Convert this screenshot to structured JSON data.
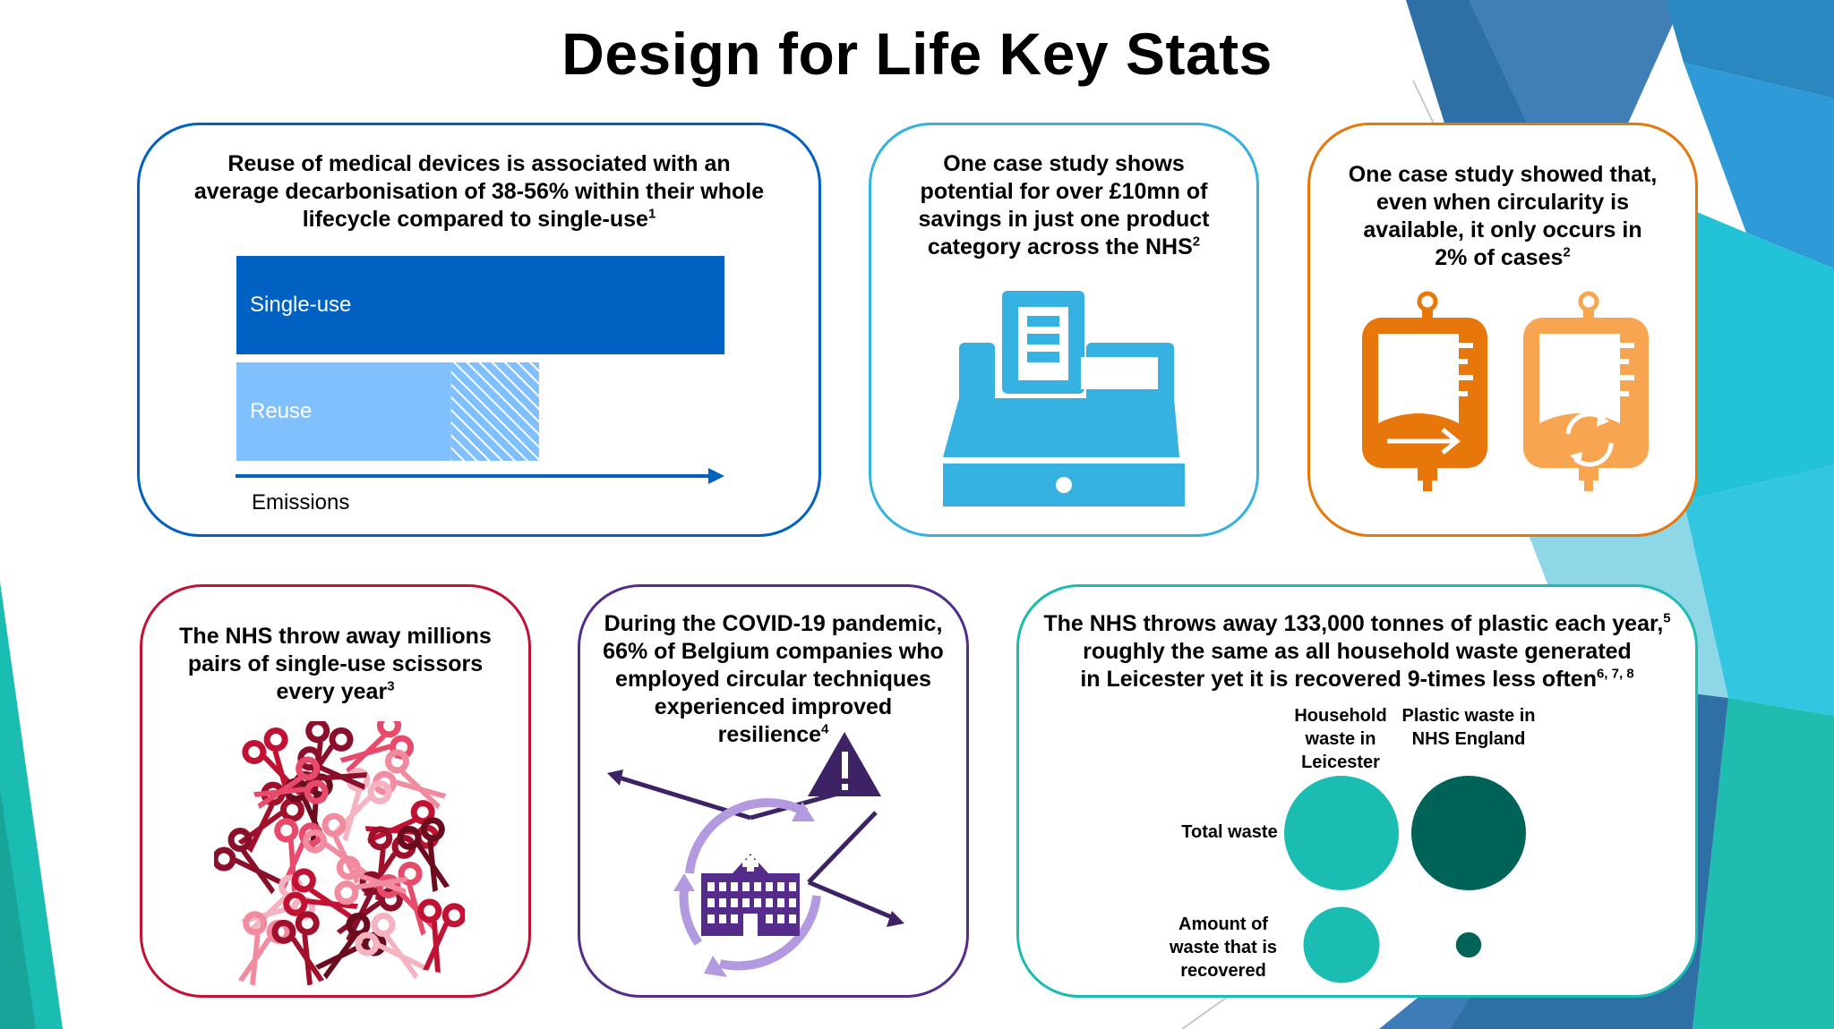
{
  "title": "Design for Life Key Stats",
  "colors": {
    "blue_dark": "#0061c2",
    "blue_light": "#80c0ff",
    "sky": "#35b2e2",
    "orange": "#e7760b",
    "orange_light": "#f8a552",
    "crimson": "#c21234",
    "purple": "#552c8c",
    "teal": "#1bbcb1",
    "teal_dark": "#006358"
  },
  "card1": {
    "text_main": "Reuse of medical devices is associated with an average decarbonisation of 38-56% within their whole lifecycle compared to single-use",
    "ref": "1",
    "chart_data": {
      "type": "bar",
      "orientation": "horizontal",
      "categories": [
        "Single-use",
        "Reuse"
      ],
      "series": [
        {
          "values": [
            100,
            44
          ]
        },
        {
          "values": [
            0,
            18
          ]
        }
      ],
      "xlabel": "Emissions"
    }
  },
  "card2": {
    "text_main": "One case study shows potential for over £10mn of savings in just one product category across the NHS",
    "ref": "2",
    "icon": "cash-register-icon"
  },
  "card3": {
    "text_main": "One case study showed that, even when circularity is available, it only occurs in 2% of cases",
    "ref": "2",
    "icons": [
      "iv-bag-arrow-icon",
      "iv-bag-recycle-icon"
    ]
  },
  "card4": {
    "text_main": "The NHS throw away millions pairs of single-use scissors every year",
    "ref": "3",
    "icon": "scissors-pile-icon"
  },
  "card5": {
    "text_main": "During the COVID-19 pandemic, 66% of Belgium companies who employed circular techniques experienced improved resilience",
    "ref": "4",
    "icon": "hospital-resilience-icon"
  },
  "card6": {
    "line1": "The NHS throws away 133,000 tonnes of plastic each year,",
    "ref1": "5",
    "line2": "roughly the same as all household waste generated",
    "line3": "in Leicester yet it is recovered 9-times less often",
    "ref2": "6, 7, 8",
    "col1_header": "Household waste in Leicester",
    "col2_header": "Plastic waste in NHS England",
    "row1_label": "Total waste",
    "row2_label": "Amount of waste that is recovered",
    "chart_data": {
      "type": "scatter",
      "encoding": "bubble size",
      "x": [
        "Household waste in Leicester",
        "Plastic waste in NHS England"
      ],
      "y": [
        "Total waste",
        "Amount of waste that is recovered"
      ],
      "series": [
        {
          "name": "Household waste in Leicester",
          "values": [
            1,
            0.44
          ]
        },
        {
          "name": "Plastic waste in NHS England",
          "values": [
            1,
            0.049
          ]
        }
      ]
    }
  }
}
